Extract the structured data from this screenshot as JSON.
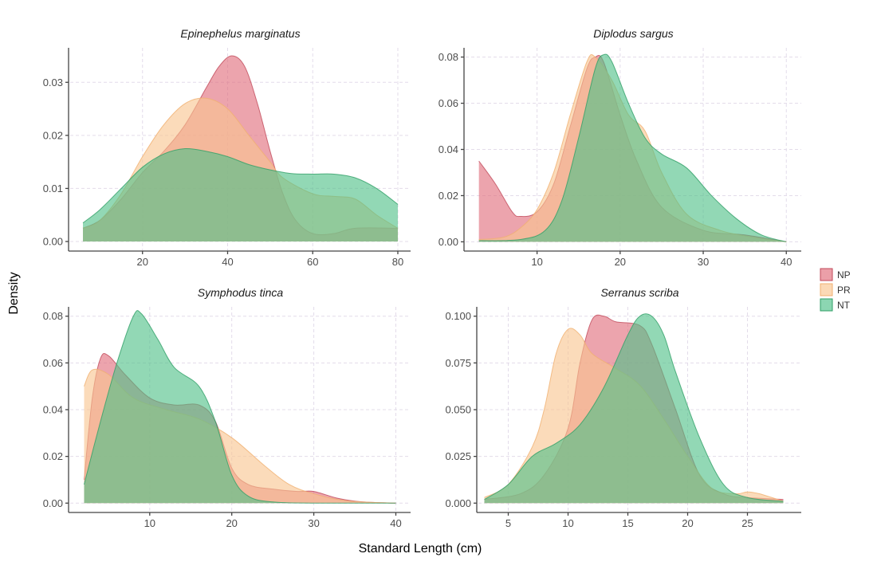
{
  "chart_data": [
    {
      "type": "area",
      "title": "Epinephelus marginatus",
      "xticks": [
        20,
        40,
        60,
        80
      ],
      "yticks": [
        0.0,
        0.01,
        0.02,
        0.03
      ],
      "ytick_labels": [
        "0.00",
        "0.01",
        "0.02",
        "0.03"
      ],
      "xlim": [
        3,
        83
      ],
      "ylim": [
        -0.0018,
        0.0365
      ],
      "series": [
        {
          "name": "NP",
          "x": [
            6,
            10,
            15,
            20,
            25,
            30,
            35,
            38,
            41,
            44,
            47,
            50,
            53,
            56,
            60,
            65,
            70,
            80
          ],
          "y": [
            0.0025,
            0.004,
            0.008,
            0.013,
            0.017,
            0.022,
            0.029,
            0.033,
            0.035,
            0.033,
            0.026,
            0.017,
            0.009,
            0.004,
            0.0015,
            0.0015,
            0.0025,
            0.0025
          ]
        },
        {
          "name": "PR",
          "x": [
            6,
            10,
            15,
            20,
            25,
            30,
            35,
            40,
            45,
            50,
            53,
            60,
            65,
            70,
            75,
            80
          ],
          "y": [
            0.0025,
            0.004,
            0.009,
            0.016,
            0.022,
            0.026,
            0.027,
            0.025,
            0.02,
            0.015,
            0.012,
            0.009,
            0.0085,
            0.008,
            0.005,
            0.0025
          ]
        },
        {
          "name": "NT",
          "x": [
            6,
            10,
            15,
            20,
            25,
            30,
            35,
            40,
            45,
            50,
            55,
            60,
            65,
            70,
            75,
            80
          ],
          "y": [
            0.0035,
            0.006,
            0.01,
            0.014,
            0.0165,
            0.0175,
            0.017,
            0.016,
            0.0145,
            0.0135,
            0.0128,
            0.0127,
            0.0127,
            0.012,
            0.01,
            0.007
          ]
        }
      ]
    },
    {
      "type": "area",
      "title": "Diplodus sargus",
      "xticks": [
        10,
        20,
        30,
        40
      ],
      "yticks": [
        0.0,
        0.02,
        0.04,
        0.06,
        0.08
      ],
      "ytick_labels": [
        "0.00",
        "0.02",
        "0.04",
        "0.06",
        "0.08"
      ],
      "xlim": [
        1.4,
        41.8
      ],
      "ylim": [
        -0.004,
        0.084
      ],
      "series": [
        {
          "name": "NP",
          "x": [
            3,
            5,
            7,
            8,
            10,
            12,
            14,
            16,
            17,
            18,
            20,
            22,
            25,
            30,
            35,
            40
          ],
          "y": [
            0.035,
            0.025,
            0.013,
            0.011,
            0.013,
            0.025,
            0.05,
            0.075,
            0.08,
            0.078,
            0.055,
            0.035,
            0.015,
            0.005,
            0.003,
            0
          ]
        },
        {
          "name": "PR",
          "x": [
            3,
            6,
            8,
            10,
            12,
            14,
            16,
            17,
            19,
            21,
            23,
            25,
            28,
            32,
            36,
            40
          ],
          "y": [
            0.001,
            0.002,
            0.006,
            0.014,
            0.03,
            0.055,
            0.078,
            0.08,
            0.07,
            0.055,
            0.048,
            0.03,
            0.012,
            0.005,
            0.002,
            0
          ]
        },
        {
          "name": "NT",
          "x": [
            3,
            8,
            11,
            13,
            15,
            17,
            18,
            19,
            21,
            23,
            25,
            28,
            31,
            34,
            37,
            40
          ],
          "y": [
            0.0005,
            0.001,
            0.005,
            0.018,
            0.045,
            0.075,
            0.081,
            0.078,
            0.06,
            0.045,
            0.038,
            0.032,
            0.02,
            0.01,
            0.003,
            0
          ]
        }
      ]
    },
    {
      "type": "area",
      "title": "Symphodus tinca",
      "xticks": [
        10,
        20,
        30,
        40
      ],
      "yticks": [
        0.0,
        0.02,
        0.04,
        0.06,
        0.08
      ],
      "ytick_labels": [
        "0.00",
        "0.02",
        "0.04",
        "0.06",
        "0.08"
      ],
      "xlim": [
        0.3,
        41.8
      ],
      "ylim": [
        -0.004,
        0.084
      ],
      "series": [
        {
          "name": "NP",
          "x": [
            2,
            3,
            4,
            5,
            7,
            10,
            13,
            16,
            18,
            20,
            22,
            25,
            28,
            30,
            33,
            36,
            40
          ],
          "y": [
            0.01,
            0.045,
            0.062,
            0.063,
            0.055,
            0.045,
            0.042,
            0.042,
            0.035,
            0.015,
            0.008,
            0.006,
            0.005,
            0.005,
            0.002,
            0.0005,
            0
          ]
        },
        {
          "name": "PR",
          "x": [
            2,
            3,
            5,
            8,
            12,
            16,
            20,
            24,
            27,
            30,
            34,
            40
          ],
          "y": [
            0.05,
            0.057,
            0.055,
            0.045,
            0.04,
            0.036,
            0.028,
            0.016,
            0.008,
            0.004,
            0.001,
            0
          ]
        },
        {
          "name": "NT",
          "x": [
            2,
            4,
            6,
            8,
            9,
            11,
            13,
            16,
            18,
            20,
            22,
            25,
            30,
            40
          ],
          "y": [
            0.008,
            0.035,
            0.06,
            0.08,
            0.081,
            0.07,
            0.058,
            0.05,
            0.035,
            0.012,
            0.003,
            0.0005,
            0,
            0
          ]
        }
      ]
    },
    {
      "type": "area",
      "title": "Serranus scriba",
      "xticks": [
        5,
        10,
        15,
        20,
        25
      ],
      "yticks": [
        0.0,
        0.025,
        0.05,
        0.075,
        0.1
      ],
      "ytick_labels": [
        "0.000",
        "0.025",
        "0.050",
        "0.075",
        "0.100"
      ],
      "xlim": [
        2.5,
        29.5
      ],
      "ylim": [
        -0.005,
        0.105
      ],
      "series": [
        {
          "name": "NP",
          "x": [
            3,
            6,
            8,
            10,
            11,
            12,
            13,
            14,
            16,
            17,
            19,
            21,
            23,
            25,
            28
          ],
          "y": [
            0.002,
            0.005,
            0.015,
            0.04,
            0.075,
            0.098,
            0.1,
            0.097,
            0.095,
            0.085,
            0.05,
            0.015,
            0.005,
            0.003,
            0.002
          ]
        },
        {
          "name": "PR",
          "x": [
            3,
            5,
            7,
            8,
            9,
            10,
            11,
            12,
            14,
            16,
            18,
            20,
            22,
            24,
            25,
            26,
            28
          ],
          "y": [
            0.003,
            0.01,
            0.03,
            0.05,
            0.08,
            0.093,
            0.09,
            0.08,
            0.072,
            0.063,
            0.045,
            0.025,
            0.008,
            0.005,
            0.006,
            0.005,
            0.001
          ]
        },
        {
          "name": "NT",
          "x": [
            3,
            5,
            7,
            9,
            11,
            13,
            15,
            16,
            17,
            18,
            19,
            21,
            23,
            25,
            28
          ],
          "y": [
            0.002,
            0.01,
            0.025,
            0.032,
            0.042,
            0.062,
            0.09,
            0.1,
            0.1,
            0.09,
            0.07,
            0.035,
            0.01,
            0.003,
            0.001
          ]
        }
      ]
    }
  ],
  "xlabel": "Standard Length (cm)",
  "ylabel": "Density",
  "legend": {
    "placement": "right",
    "entries": [
      "NP",
      "PR",
      "NT"
    ]
  },
  "colors": {
    "NP": "#e06c7a",
    "PR": "#f9c58f",
    "NT": "#4fc088"
  },
  "grid": true
}
